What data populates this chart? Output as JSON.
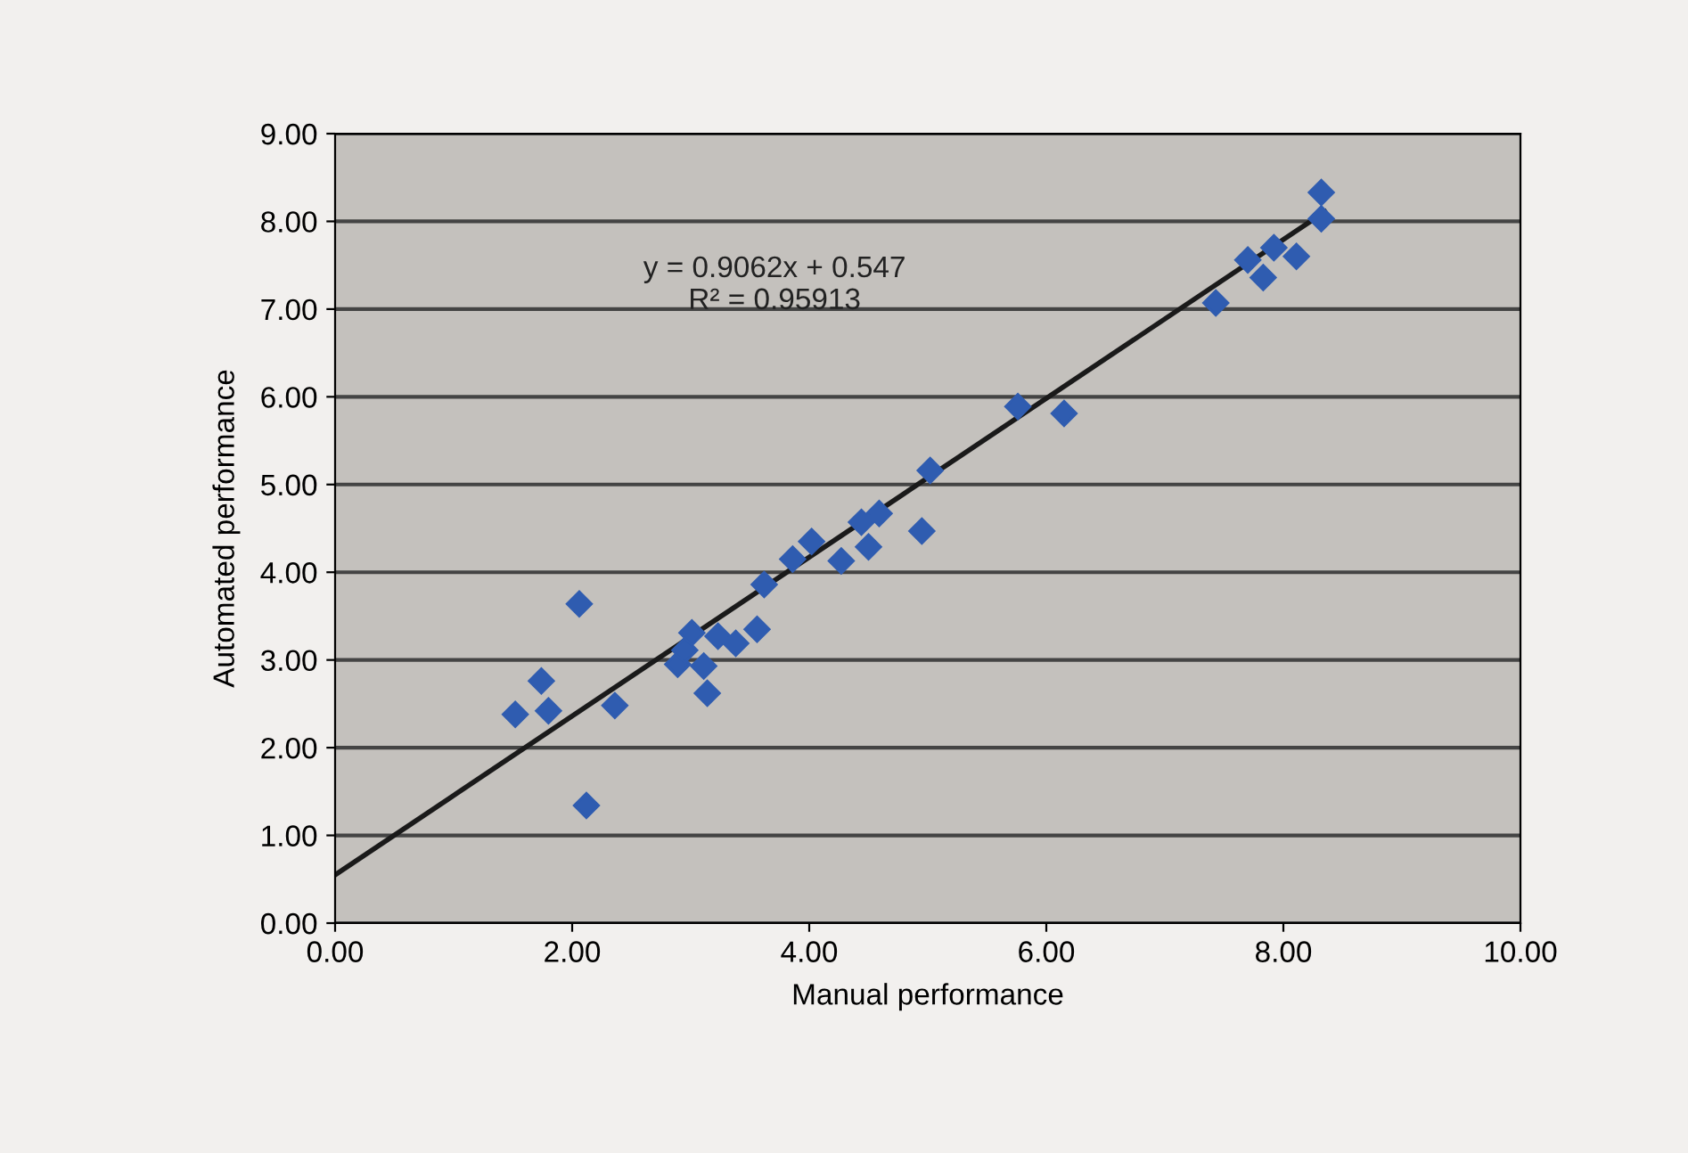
{
  "chart_data": {
    "type": "scatter",
    "xlabel": "Manual performance",
    "ylabel": "Automated performance",
    "xlim": [
      0,
      10
    ],
    "ylim": [
      0,
      9
    ],
    "xticks": [
      {
        "value": 0,
        "label": "0.00"
      },
      {
        "value": 2,
        "label": "2.00"
      },
      {
        "value": 4,
        "label": "4.00"
      },
      {
        "value": 6,
        "label": "6.00"
      },
      {
        "value": 8,
        "label": "8.00"
      },
      {
        "value": 10,
        "label": "10.00"
      }
    ],
    "yticks": [
      {
        "value": 0,
        "label": "0.00"
      },
      {
        "value": 1,
        "label": "1.00"
      },
      {
        "value": 2,
        "label": "2.00"
      },
      {
        "value": 3,
        "label": "3.00"
      },
      {
        "value": 4,
        "label": "4.00"
      },
      {
        "value": 5,
        "label": "5.00"
      },
      {
        "value": 6,
        "label": "6.00"
      },
      {
        "value": 7,
        "label": "7.00"
      },
      {
        "value": 8,
        "label": "8.00"
      },
      {
        "value": 9,
        "label": "9.00"
      }
    ],
    "grid": "y",
    "marker": "diamond",
    "annotations": [
      "y = 0.9062x + 0.547\nR² = 0.95913"
    ],
    "series": [
      {
        "color": "#2f5cb0",
        "x": [
          1.52,
          1.74,
          1.8,
          2.06,
          2.36,
          2.12,
          2.89,
          2.95,
          3.01,
          3.11,
          3.14,
          3.23,
          3.38,
          3.56,
          3.62,
          3.86,
          4.02,
          4.27,
          4.44,
          4.59,
          4.5,
          4.95,
          5.02,
          5.76,
          6.15,
          7.43,
          7.7,
          7.83,
          7.92,
          8.11,
          8.32,
          8.32
        ],
        "values": [
          2.38,
          2.76,
          2.42,
          3.64,
          2.48,
          1.34,
          2.95,
          3.11,
          3.31,
          2.93,
          2.62,
          3.27,
          3.19,
          3.35,
          3.86,
          4.15,
          4.35,
          4.13,
          4.57,
          4.67,
          4.29,
          4.47,
          5.16,
          5.89,
          5.81,
          7.07,
          7.56,
          7.36,
          7.7,
          7.6,
          8.03,
          8.33
        ]
      },
      {
        "type": "line",
        "color": "#1a1a1a",
        "marker": "none",
        "x": [
          0,
          8.35
        ],
        "values": [
          0.55,
          8.11
        ]
      }
    ]
  }
}
